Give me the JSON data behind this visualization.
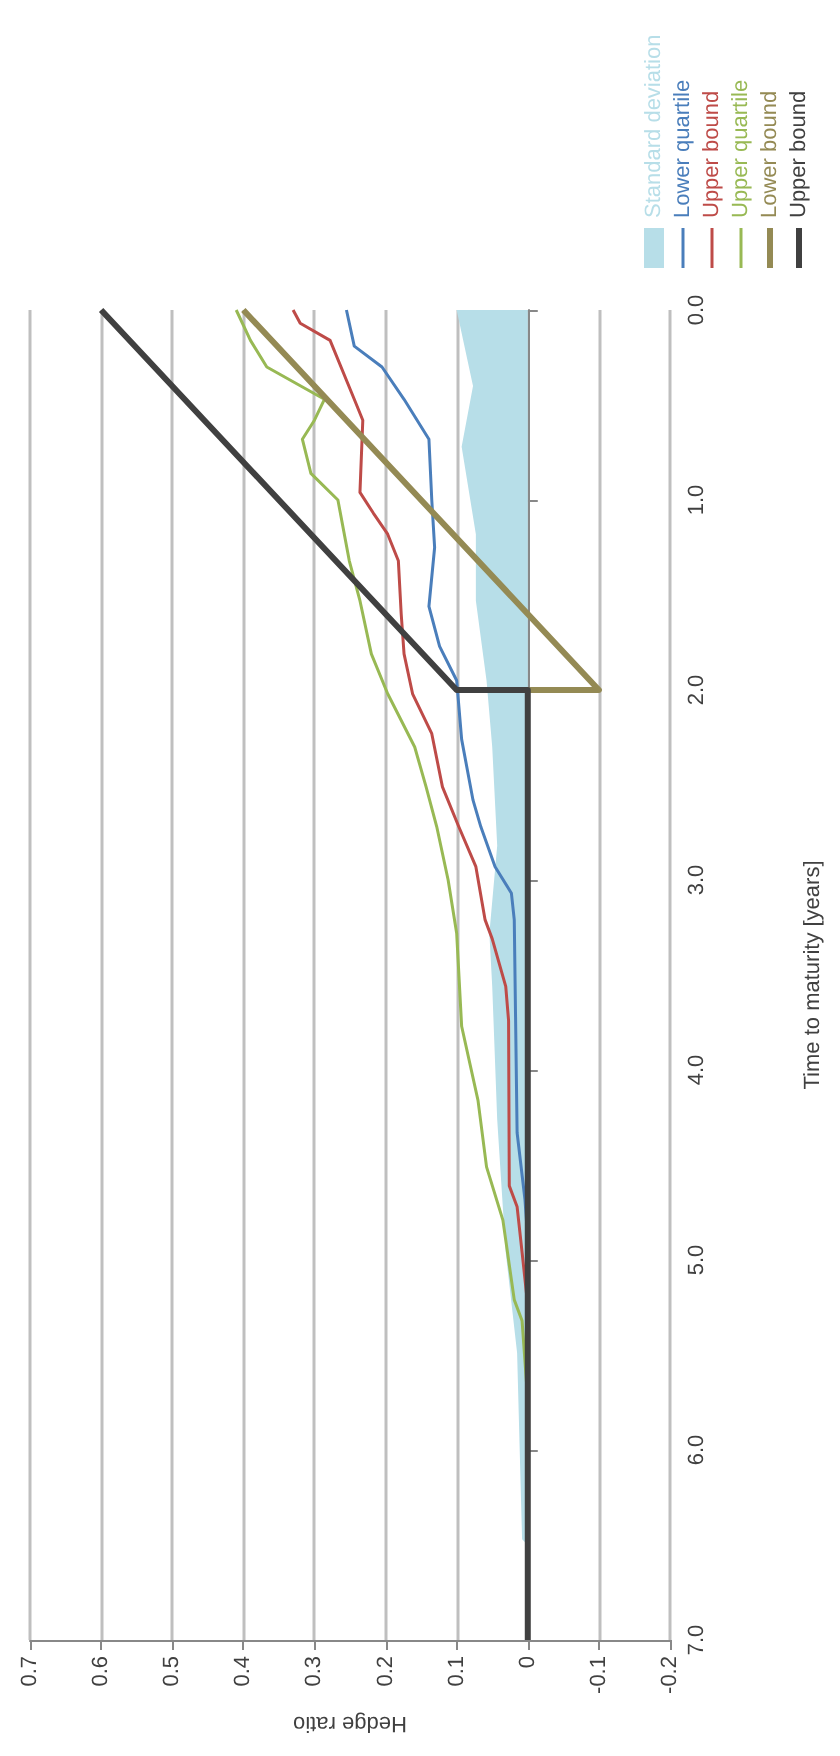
{
  "chart_data": {
    "type": "line",
    "xlabel": "Hedge ratio",
    "ylabel": "Time to maturity [years]",
    "xlim": [
      0.7,
      -0.2
    ],
    "xticks": [
      -0.2,
      -0.1,
      0,
      0.1,
      0.2,
      0.3,
      0.4,
      0.5,
      0.6,
      0.7
    ],
    "ylim": [
      7,
      0
    ],
    "yticks": [
      {
        "value": 0,
        "label": "0.0"
      },
      {
        "value": 1,
        "label": "1.0"
      },
      {
        "value": 2,
        "label": "2.0"
      },
      {
        "value": 3,
        "label": "3.0"
      },
      {
        "value": 4,
        "label": "4.0"
      },
      {
        "value": 5,
        "label": "5.0"
      },
      {
        "value": 6,
        "label": "6.0"
      },
      {
        "value": 7,
        "label": "7.0"
      }
    ],
    "grid": "x",
    "legend": "top right",
    "marker": "none",
    "series": [
      {
        "name": "Standard deviation",
        "type": "area",
        "color": "#b7dee8",
        "values": [
          0,
          0.4,
          0.72,
          1.18,
          1.53,
          1.95,
          2.3,
          2.82,
          3.28,
          3.56,
          4.26,
          4.96,
          5.49,
          6.47,
          6.5
        ],
        "x": [
          0.1,
          0.077,
          0.093,
          0.073,
          0.073,
          0.058,
          0.05,
          0.043,
          0.054,
          0.05,
          0.043,
          0.031,
          0.015,
          0.008,
          0
        ]
      },
      {
        "name": "Lower quartile",
        "color": "#4a7ebb",
        "values": [
          0,
          0.19,
          0.3,
          0.47,
          0.68,
          1.0,
          1.25,
          1.56,
          1.77,
          1.95,
          2.26,
          2.58,
          2.72,
          2.93,
          3.07,
          3.21,
          4.33,
          4.68,
          4.89,
          7
        ],
        "x": [
          0.255,
          0.244,
          0.205,
          0.174,
          0.139,
          0.135,
          0.131,
          0.139,
          0.124,
          0.1,
          0.093,
          0.077,
          0.066,
          0.046,
          0.023,
          0.019,
          0.015,
          0.004,
          0,
          0
        ]
      },
      {
        "name": "Upper bound",
        "color": "#be4b48",
        "values": [
          0,
          0.07,
          0.16,
          0.47,
          0.58,
          0.96,
          1.07,
          1.18,
          1.32,
          1.6,
          1.81,
          2.02,
          2.23,
          2.51,
          2.72,
          2.93,
          3.21,
          3.31,
          3.56,
          3.74,
          4.61,
          4.72,
          4.96,
          5.24,
          7
        ],
        "x": [
          0.33,
          0.32,
          0.278,
          0.244,
          0.232,
          0.236,
          0.217,
          0.197,
          0.182,
          0.178,
          0.174,
          0.162,
          0.135,
          0.12,
          0.097,
          0.073,
          0.06,
          0.05,
          0.031,
          0.027,
          0.026,
          0.015,
          0.008,
          0,
          0
        ]
      },
      {
        "name": "Upper quartile",
        "color": "#98b954",
        "values": [
          0,
          0.16,
          0.3,
          0.47,
          0.58,
          0.68,
          0.86,
          1.0,
          1.32,
          1.53,
          1.81,
          2.02,
          2.3,
          2.51,
          2.72,
          3.0,
          3.28,
          3.77,
          4.16,
          4.51,
          4.79,
          5.21,
          5.32,
          5.74,
          7
        ],
        "x": [
          0.41,
          0.39,
          0.367,
          0.286,
          0.3,
          0.317,
          0.305,
          0.267,
          0.251,
          0.236,
          0.22,
          0.197,
          0.159,
          0.143,
          0.128,
          0.112,
          0.1,
          0.093,
          0.07,
          0.058,
          0.035,
          0.019,
          0.008,
          0,
          0
        ]
      },
      {
        "name": "Lower bound",
        "color": "#948a54",
        "values": [
          0,
          2,
          2
        ],
        "x": [
          0.4,
          -0.1,
          0
        ]
      },
      {
        "name": "Upper bound",
        "color": "#404040",
        "values": [
          0,
          2,
          2,
          7
        ],
        "x": [
          0.6,
          0.1,
          0,
          0
        ]
      }
    ]
  }
}
